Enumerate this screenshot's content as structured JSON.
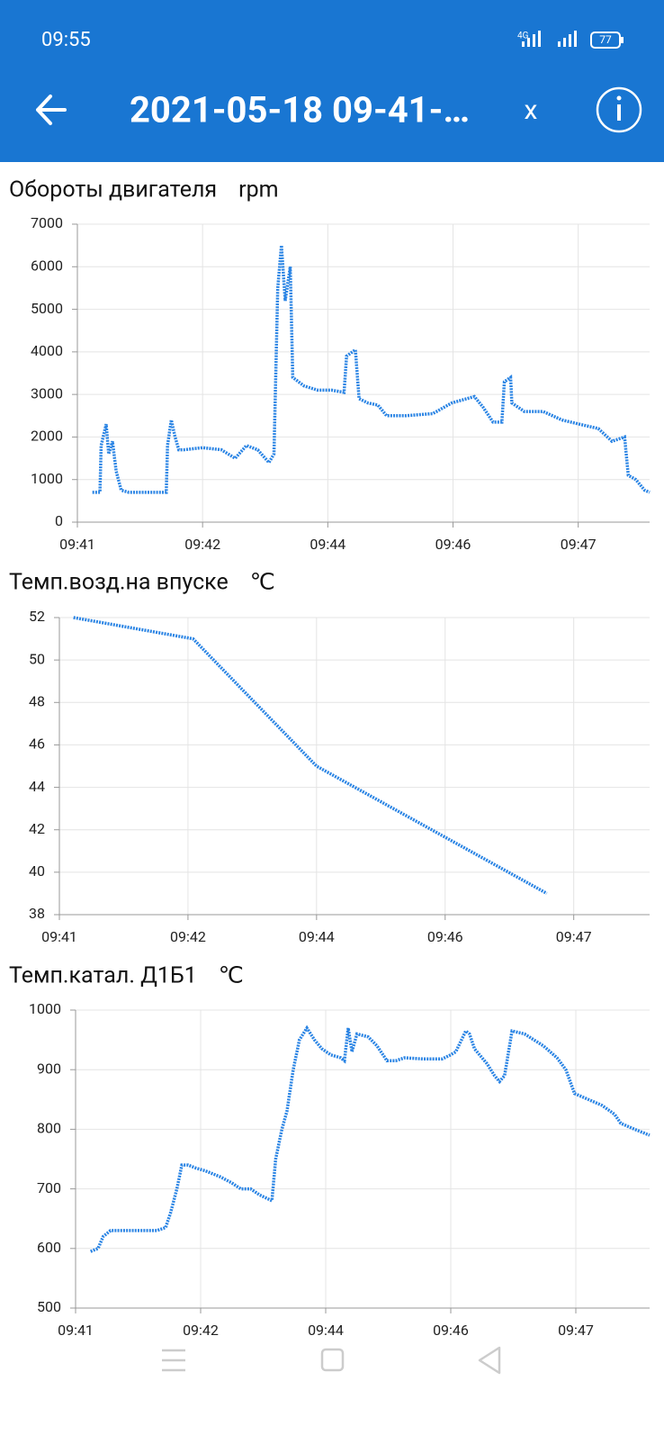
{
  "status_bar": {
    "time": "09:55",
    "network": "4G",
    "battery": "77"
  },
  "app_bar": {
    "title": "2021-05-18 09-41-…",
    "close": "x"
  },
  "chart_data": [
    {
      "type": "line",
      "title": "Обороты двигателя",
      "unit": "rpm",
      "color": "#2a84e4",
      "x": [
        0.12,
        0.18,
        0.19,
        0.23,
        0.25,
        0.28,
        0.31,
        0.35,
        0.41,
        0.56,
        0.71,
        0.72,
        0.75,
        0.78,
        0.81,
        0.85,
        1.0,
        1.15,
        1.26,
        1.35,
        1.44,
        1.53,
        1.57,
        1.6,
        1.63,
        1.66,
        1.7,
        1.72,
        1.81,
        1.92,
        2.03,
        2.13,
        2.15,
        2.22,
        2.25,
        2.32,
        2.4,
        2.47,
        2.62,
        2.84,
        2.99,
        3.17,
        3.24,
        3.32,
        3.39,
        3.41,
        3.46,
        3.47,
        3.57,
        3.72,
        3.87,
        4.01,
        4.16,
        4.27,
        4.37,
        4.4,
        4.46,
        4.53,
        4.57
      ],
      "values": [
        700,
        700,
        1800,
        2300,
        1600,
        1900,
        1200,
        750,
        700,
        700,
        700,
        1800,
        2400,
        2000,
        1700,
        1700,
        1750,
        1700,
        1500,
        1800,
        1700,
        1400,
        1600,
        5500,
        6500,
        5200,
        6000,
        3400,
        3200,
        3100,
        3100,
        3050,
        3900,
        4050,
        2900,
        2800,
        2750,
        2500,
        2500,
        2550,
        2800,
        2950,
        2700,
        2350,
        2350,
        3300,
        3400,
        2800,
        2600,
        2600,
        2400,
        2300,
        2200,
        1900,
        2000,
        1100,
        1000,
        750,
        700
      ],
      "xlim": [
        0,
        4.57
      ],
      "xticks": [
        {
          "value": 0,
          "label": "09:41"
        },
        {
          "value": 1,
          "label": "09:42"
        },
        {
          "value": 2,
          "label": "09:44"
        },
        {
          "value": 3,
          "label": "09:46"
        },
        {
          "value": 4,
          "label": "09:47"
        }
      ],
      "ylim": [
        0,
        7000
      ],
      "yticks": [
        0,
        1000,
        2000,
        3000,
        4000,
        5000,
        6000,
        7000
      ],
      "grid": true
    },
    {
      "type": "line",
      "title": "Темп.возд.на впуске",
      "unit": "℃",
      "color": "#2a84e4",
      "x": [
        0.11,
        1.04,
        2.0,
        3.79
      ],
      "values": [
        52,
        51,
        45,
        39
      ],
      "xlim": [
        0,
        4.59
      ],
      "xticks": [
        {
          "value": 0,
          "label": "09:41"
        },
        {
          "value": 1,
          "label": "09:42"
        },
        {
          "value": 2,
          "label": "09:44"
        },
        {
          "value": 3,
          "label": "09:46"
        },
        {
          "value": 4,
          "label": "09:47"
        }
      ],
      "ylim": [
        38,
        52
      ],
      "yticks": [
        38,
        40,
        42,
        44,
        46,
        48,
        50,
        52
      ],
      "grid": true
    },
    {
      "type": "line",
      "title": "Темп.катал. Д1Б1",
      "unit": "℃",
      "color": "#2a84e4",
      "x": [
        0.12,
        0.18,
        0.22,
        0.28,
        0.43,
        0.65,
        0.72,
        0.76,
        0.81,
        0.85,
        0.9,
        0.96,
        1.04,
        1.16,
        1.25,
        1.32,
        1.4,
        1.47,
        1.57,
        1.6,
        1.65,
        1.69,
        1.74,
        1.79,
        1.85,
        1.91,
        1.97,
        2.04,
        2.12,
        2.15,
        2.18,
        2.21,
        2.25,
        2.34,
        2.41,
        2.49,
        2.56,
        2.63,
        2.78,
        2.93,
        3.0,
        3.04,
        3.12,
        3.15,
        3.19,
        3.29,
        3.35,
        3.39,
        3.43,
        3.49,
        3.59,
        3.74,
        3.85,
        3.92,
        3.99,
        4.1,
        4.21,
        4.31,
        4.36,
        4.47,
        4.59
      ],
      "values": [
        595,
        600,
        620,
        630,
        630,
        630,
        635,
        660,
        700,
        740,
        740,
        735,
        730,
        720,
        710,
        700,
        700,
        690,
        680,
        750,
        800,
        830,
        900,
        950,
        970,
        950,
        935,
        925,
        920,
        915,
        970,
        930,
        960,
        955,
        940,
        915,
        915,
        920,
        918,
        918,
        925,
        930,
        965,
        960,
        935,
        910,
        890,
        880,
        890,
        965,
        960,
        940,
        920,
        900,
        860,
        850,
        840,
        825,
        810,
        800,
        790
      ],
      "xlim": [
        0,
        4.59
      ],
      "xticks": [
        {
          "value": 0,
          "label": "09:41"
        },
        {
          "value": 1,
          "label": "09:42"
        },
        {
          "value": 2,
          "label": "09:44"
        },
        {
          "value": 3,
          "label": "09:46"
        },
        {
          "value": 4,
          "label": "09:47"
        }
      ],
      "ylim": [
        500,
        1000
      ],
      "yticks": [
        500,
        600,
        700,
        800,
        900,
        1000
      ],
      "grid": true
    }
  ]
}
